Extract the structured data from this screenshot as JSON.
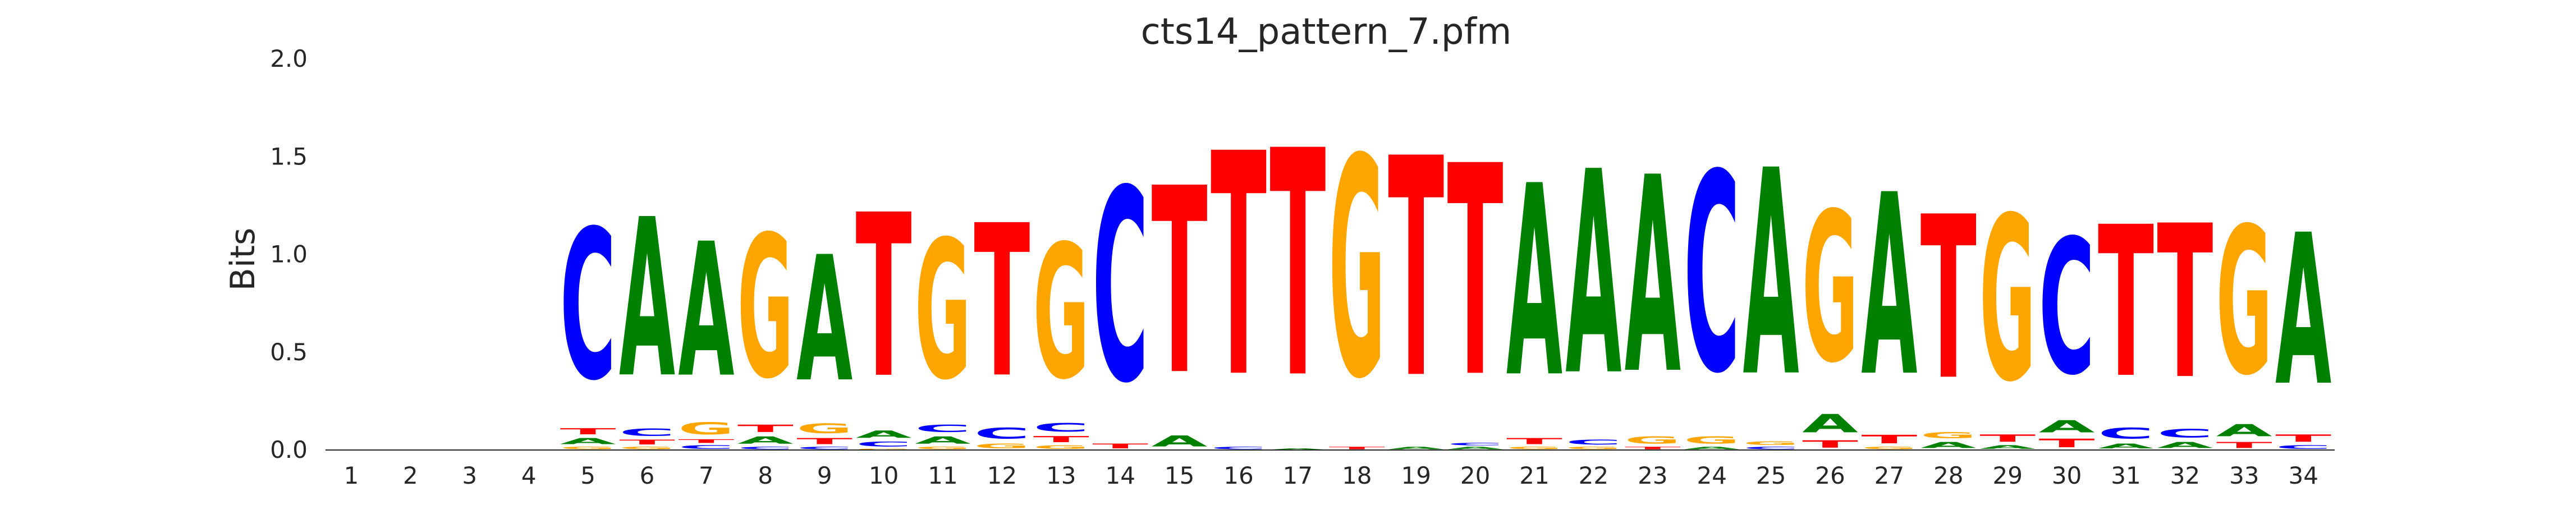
{
  "chart_data": {
    "type": "sequence-logo",
    "title": "cts14_pattern_7.pfm",
    "xlabel": "",
    "ylabel": "Bits",
    "ylim": [
      0,
      2.0
    ],
    "yticks": [
      "0.0",
      "0.5",
      "1.0",
      "1.5",
      "2.0"
    ],
    "positions": [
      "1",
      "2",
      "3",
      "4",
      "5",
      "6",
      "7",
      "8",
      "9",
      "10",
      "11",
      "12",
      "13",
      "14",
      "15",
      "16",
      "17",
      "18",
      "19",
      "20",
      "21",
      "22",
      "23",
      "24",
      "25",
      "26",
      "27",
      "28",
      "29",
      "30",
      "31",
      "32",
      "33",
      "34"
    ],
    "colors": {
      "A": "#008000",
      "C": "#0000ff",
      "G": "#ffa500",
      "T": "#ff0000"
    },
    "stacks": [
      [],
      [],
      [],
      [],
      [
        [
          "G",
          0.02
        ],
        [
          "A",
          0.05
        ],
        [
          "T",
          0.05
        ],
        [
          "C",
          1.23
        ]
      ],
      [
        [
          "G",
          0.02
        ],
        [
          "T",
          0.04
        ],
        [
          "C",
          0.06
        ],
        [
          "A",
          1.3
        ]
      ],
      [
        [
          "C",
          0.03
        ],
        [
          "T",
          0.03
        ],
        [
          "G",
          0.1
        ],
        [
          "A",
          1.1
        ]
      ],
      [
        [
          "C",
          0.02
        ],
        [
          "A",
          0.06
        ],
        [
          "T",
          0.06
        ],
        [
          "G",
          1.17
        ]
      ],
      [
        [
          "C",
          0.02
        ],
        [
          "T",
          0.05
        ],
        [
          "G",
          0.08
        ],
        [
          "A",
          1.03
        ]
      ],
      [
        [
          "G",
          0.01
        ],
        [
          "C",
          0.04
        ],
        [
          "A",
          0.06
        ],
        [
          "T",
          1.34
        ]
      ],
      [
        [
          "G",
          0.02
        ],
        [
          "A",
          0.06
        ],
        [
          "C",
          0.06
        ],
        [
          "G",
          1.14
        ]
      ],
      [
        [
          "G",
          0.04
        ],
        [
          "C",
          0.09
        ],
        [
          "T",
          1.25
        ]
      ],
      [
        [
          "G",
          0.03
        ],
        [
          "T",
          0.05
        ],
        [
          "C",
          0.07
        ],
        [
          "G",
          1.1
        ]
      ],
      [
        [
          "T",
          0.04
        ],
        [
          "C",
          1.58
        ]
      ],
      [
        [
          "A",
          0.09
        ],
        [
          "T",
          1.53
        ]
      ],
      [
        [
          "C",
          0.02
        ],
        [
          "T",
          1.83
        ]
      ],
      [
        [
          "A",
          0.01
        ],
        [
          "T",
          1.86
        ]
      ],
      [
        [
          "T",
          0.02
        ],
        [
          "G",
          1.8
        ]
      ],
      [
        [
          "A",
          0.02
        ],
        [
          "T",
          1.8
        ]
      ],
      [
        [
          "A",
          0.02
        ],
        [
          "C",
          0.02
        ],
        [
          "T",
          1.73
        ]
      ],
      [
        [
          "G",
          0.02
        ],
        [
          "T",
          0.05
        ],
        [
          "A",
          1.57
        ]
      ],
      [
        [
          "G",
          0.02
        ],
        [
          "C",
          0.04
        ],
        [
          "A",
          1.67
        ]
      ],
      [
        [
          "T",
          0.02
        ],
        [
          "G",
          0.06
        ],
        [
          "A",
          1.61
        ]
      ],
      [
        [
          "A",
          0.02
        ],
        [
          "G",
          0.06
        ],
        [
          "C",
          1.63
        ]
      ],
      [
        [
          "C",
          0.02
        ],
        [
          "G",
          0.03
        ],
        [
          "A",
          1.69
        ]
      ],
      [
        [
          "T",
          0.06
        ],
        [
          "A",
          0.15
        ],
        [
          "G",
          1.23
        ]
      ],
      [
        [
          "G",
          0.02
        ],
        [
          "T",
          0.07
        ],
        [
          "A",
          1.49
        ]
      ],
      [
        [
          "A",
          0.05
        ],
        [
          "G",
          0.05
        ],
        [
          "T",
          1.34
        ]
      ],
      [
        [
          "A",
          0.03
        ],
        [
          "T",
          0.06
        ],
        [
          "G",
          1.35
        ]
      ],
      [
        [
          "T",
          0.07
        ],
        [
          "A",
          0.1
        ],
        [
          "C",
          1.11
        ]
      ],
      [
        [
          "A",
          0.04
        ],
        [
          "C",
          0.09
        ],
        [
          "T",
          1.24
        ]
      ],
      [
        [
          "A",
          0.05
        ],
        [
          "C",
          0.07
        ],
        [
          "T",
          1.26
        ]
      ],
      [
        [
          "T",
          0.05
        ],
        [
          "A",
          0.1
        ],
        [
          "G",
          1.21
        ]
      ],
      [
        [
          "C",
          0.03
        ],
        [
          "T",
          0.06
        ],
        [
          "A",
          1.24
        ]
      ]
    ],
    "grid": false,
    "legend": "none"
  }
}
